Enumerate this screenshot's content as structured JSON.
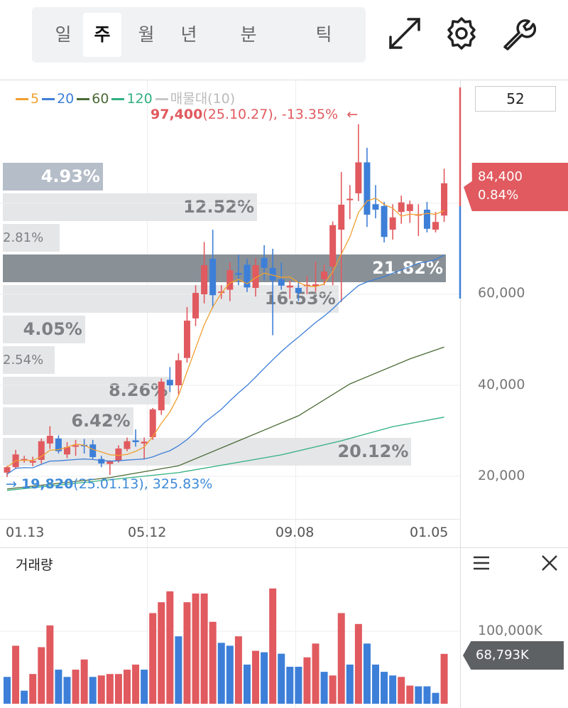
{
  "toolbar": {
    "periods": [
      {
        "label": "일"
      },
      {
        "label": "주",
        "selected": true
      },
      {
        "label": "월"
      },
      {
        "label": "년"
      },
      {
        "label": "분"
      },
      {
        "label": "틱"
      }
    ],
    "icons": [
      "expand-icon",
      "gear-icon",
      "wrench-icon"
    ]
  },
  "legend": [
    {
      "label": "5",
      "color": "#f0a030"
    },
    {
      "label": "20",
      "color": "#3d7fd8"
    },
    {
      "label": "60",
      "color": "#4a6b35"
    },
    {
      "label": "120",
      "color": "#30b080"
    },
    {
      "label": "매물대(10)",
      "color": "#c8c8c8"
    }
  ],
  "high_note": {
    "price": "97,400",
    "detail": "(25.10.27), -13.35%",
    "arrow": "←"
  },
  "low_note": {
    "arrow": "→",
    "price": "19,820",
    "detail": "(25.01.13), 325.83%"
  },
  "period_input": "52",
  "current_price": {
    "price": "84,400",
    "change": "0.84%"
  },
  "price_axis": [
    "60,000",
    "40,000",
    "20,000"
  ],
  "date_axis": [
    "01.13",
    "05.12",
    "09.08",
    "01.05"
  ],
  "volume_profile": [
    {
      "pct": "4.93%",
      "style": "blue"
    },
    {
      "pct": "12.52%"
    },
    {
      "pct": "2.81%"
    },
    {
      "pct": "21.82%",
      "style": "dark"
    },
    {
      "pct": "16.53%"
    },
    {
      "pct": "4.05%"
    },
    {
      "pct": "2.54%"
    },
    {
      "pct": "8.26%"
    },
    {
      "pct": "6.42%"
    },
    {
      "pct": "20.12%"
    }
  ],
  "colors": {
    "up": "#e05a5f",
    "down": "#3d7fd8"
  },
  "chart_data": {
    "type": "candlestick",
    "interval": "weekly",
    "ohlc": [
      [
        20800,
        22300,
        19820,
        22000
      ],
      [
        22000,
        25800,
        21600,
        24800
      ],
      [
        23500,
        24500,
        23000,
        23800
      ],
      [
        23000,
        24300,
        22200,
        23400
      ],
      [
        23600,
        28300,
        22800,
        27700
      ],
      [
        27200,
        31000,
        26000,
        28900
      ],
      [
        28300,
        29000,
        25000,
        25500
      ],
      [
        24800,
        27500,
        24000,
        26400
      ],
      [
        26500,
        28000,
        24500,
        26800
      ],
      [
        26900,
        28200,
        25000,
        26600
      ],
      [
        27000,
        28000,
        23800,
        24200
      ],
      [
        23800,
        24500,
        22000,
        22800
      ],
      [
        22700,
        23500,
        20300,
        23300
      ],
      [
        23400,
        26800,
        23000,
        26100
      ],
      [
        26000,
        28500,
        25500,
        27700
      ],
      [
        27900,
        30300,
        26500,
        27500
      ],
      [
        27200,
        28500,
        23900,
        27600
      ],
      [
        28600,
        35000,
        28000,
        34700
      ],
      [
        34500,
        41500,
        33500,
        40800
      ],
      [
        41200,
        44000,
        38500,
        40000
      ],
      [
        40000,
        47000,
        38000,
        45500
      ],
      [
        46000,
        57200,
        45000,
        54200
      ],
      [
        54700,
        62000,
        53000,
        60300
      ],
      [
        60000,
        71500,
        58000,
        66400
      ],
      [
        67800,
        74200,
        57000,
        59800
      ],
      [
        60300,
        62000,
        59000,
        60600
      ],
      [
        61000,
        67000,
        58500,
        65300
      ],
      [
        64700,
        68700,
        62000,
        64300
      ],
      [
        66500,
        67800,
        60500,
        61500
      ],
      [
        61400,
        68000,
        59500,
        66400
      ],
      [
        68000,
        70800,
        63000,
        65800
      ],
      [
        65800,
        70000,
        51000,
        63000
      ],
      [
        63300,
        67000,
        61000,
        61900
      ],
      [
        61500,
        63000,
        59000,
        61900
      ],
      [
        61400,
        63000,
        58500,
        60300
      ],
      [
        61800,
        64000,
        60000,
        62100
      ],
      [
        61800,
        67200,
        60500,
        62200
      ],
      [
        63300,
        66500,
        62000,
        65000
      ],
      [
        66100,
        76000,
        62000,
        75200
      ],
      [
        74200,
        86900,
        58300,
        79700
      ],
      [
        80700,
        84000,
        76500,
        81000
      ],
      [
        82200,
        97400,
        80500,
        89000
      ],
      [
        89000,
        92200,
        74800,
        77500
      ],
      [
        79800,
        84000,
        76700,
        78600
      ],
      [
        79400,
        80300,
        71400,
        72600
      ],
      [
        74200,
        79800,
        72000,
        76900
      ],
      [
        78100,
        81700,
        75500,
        80200
      ],
      [
        78300,
        80600,
        75700,
        79800
      ],
      [
        77300,
        79800,
        72800,
        77600
      ],
      [
        78600,
        80300,
        73600,
        74400
      ],
      [
        74200,
        78100,
        73600,
        75900
      ],
      [
        77300,
        87600,
        75900,
        84400
      ]
    ],
    "ma60_samples": [
      [
        0,
        17200
      ],
      [
        12,
        19700
      ],
      [
        20,
        22300
      ],
      [
        27,
        27800
      ],
      [
        34,
        33300
      ],
      [
        40,
        40300
      ],
      [
        47,
        45800
      ],
      [
        51,
        48400
      ]
    ],
    "ma120_samples": [
      [
        0,
        16900
      ],
      [
        20,
        20800
      ],
      [
        32,
        24700
      ],
      [
        39,
        27800
      ],
      [
        45,
        30900
      ],
      [
        51,
        33000
      ]
    ],
    "ylim": [
      15000,
      105000
    ],
    "volume": {
      "title": "거래량",
      "axis_label": "100,000K",
      "last_label": "68,793K",
      "unit": "K",
      "values": [
        37000,
        80000,
        18000,
        41000,
        78000,
        108000,
        47000,
        37000,
        47000,
        61000,
        37000,
        39000,
        41000,
        41000,
        47000,
        54000,
        47000,
        125000,
        140000,
        155000,
        93000,
        140000,
        152000,
        152000,
        113000,
        84000,
        80000,
        93000,
        54000,
        73000,
        71000,
        159000,
        69000,
        51000,
        51000,
        64000,
        83000,
        44000,
        39000,
        125000,
        54000,
        110000,
        83000,
        54000,
        44000,
        39000,
        37000,
        25000,
        24000,
        24000,
        15000,
        68793
      ],
      "colors": [
        "d",
        "u",
        "d",
        "u",
        "u",
        "u",
        "d",
        "d",
        "u",
        "u",
        "d",
        "u",
        "u",
        "u",
        "u",
        "u",
        "d",
        "u",
        "u",
        "u",
        "d",
        "u",
        "u",
        "u",
        "u",
        "d",
        "d",
        "u",
        "d",
        "u",
        "d",
        "u",
        "d",
        "d",
        "d",
        "u",
        "u",
        "d",
        "u",
        "u",
        "d",
        "u",
        "d",
        "d",
        "d",
        "d",
        "u",
        "u",
        "d",
        "d",
        "d",
        "u"
      ]
    }
  }
}
